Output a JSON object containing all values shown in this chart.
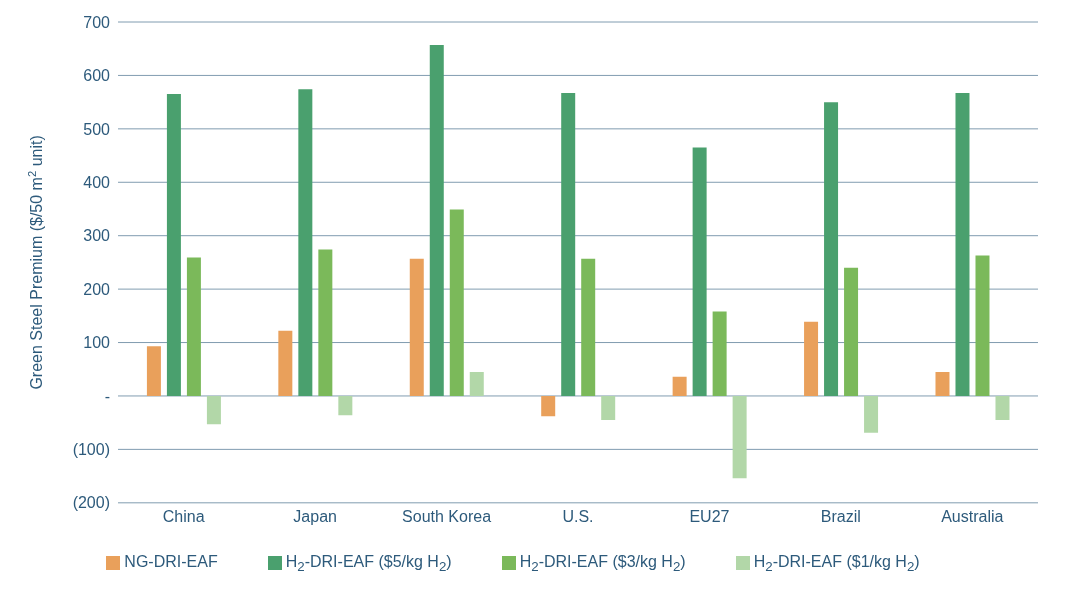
{
  "chart_data": {
    "type": "bar",
    "ylabel": "Green Steel Premium ($/50 m$^{2}$ unit)",
    "categories": [
      "China",
      "Japan",
      "South Korea",
      "U.S.",
      "EU27",
      "Brazil",
      "Australia"
    ],
    "series": [
      {
        "name": "NG-DRI-EAF",
        "color": "#e9a05b",
        "values": [
          93,
          122,
          257,
          -38,
          36,
          139,
          45
        ]
      },
      {
        "name": "H$_{2}$-DRI-EAF ($5/kg H$_{2}$)",
        "color": "#4aa06e",
        "values": [
          565,
          574,
          657,
          567,
          465,
          550,
          567
        ]
      },
      {
        "name": "H$_{2}$-DRI-EAF ($3/kg H$_{2}$)",
        "color": "#7bb95a",
        "values": [
          259,
          274,
          349,
          257,
          158,
          240,
          263
        ]
      },
      {
        "name": "H$_{2}$-DRI-EAF ($1/kg H$_{2}$)",
        "color": "#b2d7a8",
        "values": [
          -53,
          -36,
          45,
          -45,
          -154,
          -69,
          -45
        ]
      }
    ],
    "ylim": [
      -200,
      700
    ],
    "yticks": [
      {
        "value": -200,
        "label": "(200)"
      },
      {
        "value": -100,
        "label": "(100)"
      },
      {
        "value": 0,
        "label": "-"
      },
      100,
      200,
      300,
      400,
      500,
      600,
      700
    ],
    "grid": "y",
    "legend": "bottom"
  }
}
